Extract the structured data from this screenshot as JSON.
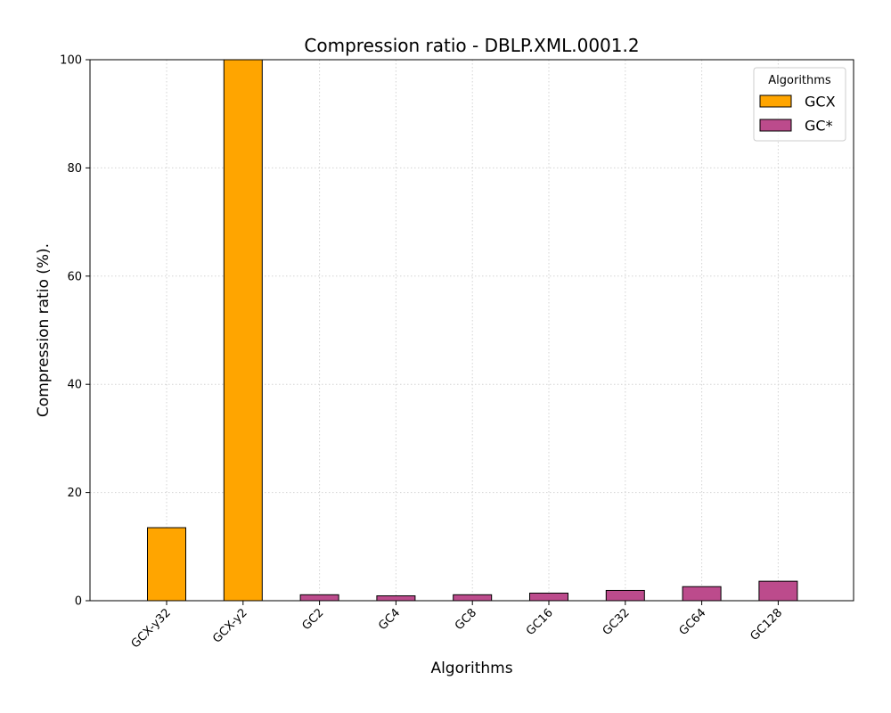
{
  "chart_data": {
    "type": "bar",
    "title": "Compression ratio -  DBLP.XML.0001.2",
    "xlabel": "Algorithms",
    "ylabel": "Compression ratio (%).",
    "ylim": [
      0,
      100
    ],
    "yticks": [
      0,
      20,
      40,
      60,
      80,
      100
    ],
    "grid": true,
    "legend": {
      "title": "Algorithms",
      "position": "top-right",
      "entries": [
        {
          "name": "GCX",
          "color": "#FFA500"
        },
        {
          "name": "GC*",
          "color": "#BC4B8C"
        }
      ]
    },
    "categories": [
      "GCX-y32",
      "GCX-y2",
      "GC2",
      "GC4",
      "GC8",
      "GC16",
      "GC32",
      "GC64",
      "GC128"
    ],
    "values": [
      13.5,
      100,
      1.1,
      0.9,
      1.1,
      1.4,
      1.9,
      2.6,
      3.6
    ],
    "groups": [
      "GCX",
      "GCX",
      "GC*",
      "GC*",
      "GC*",
      "GC*",
      "GC*",
      "GC*",
      "GC*"
    ]
  }
}
